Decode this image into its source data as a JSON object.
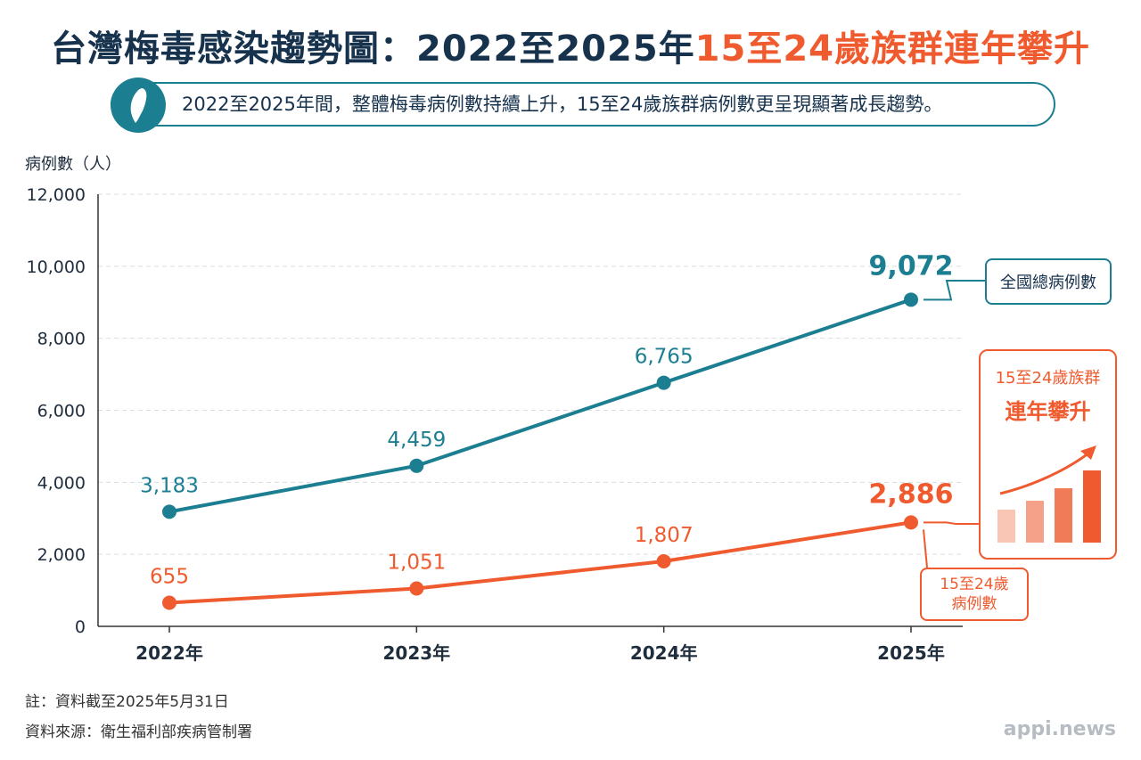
{
  "header": {
    "title_main": "台灣梅毒感染趨勢圖：2022至2025年",
    "title_accent": "15至24歲族群連年攀升",
    "subtitle": "2022至2025年間，整體梅毒病例數持續上升，15至24歲族群病例數更呈現顯著成長趨勢。",
    "banner_icon": "taiwan-map-icon"
  },
  "chart_data": {
    "type": "line",
    "ylabel": "病例數（人）",
    "ylim": [
      0,
      12000
    ],
    "yticks": [
      0,
      2000,
      4000,
      6000,
      8000,
      10000,
      12000
    ],
    "ytick_labels": [
      "0",
      "2,000",
      "4,000",
      "6,000",
      "8,000",
      "10,000",
      "12,000"
    ],
    "categories": [
      "2022年",
      "2023年",
      "2024年",
      "2025年"
    ],
    "grid": true,
    "series": [
      {
        "name": "全國總病例數",
        "values": [
          3183,
          4459,
          6765,
          9072
        ],
        "labels": [
          "3,183",
          "4,459",
          "6,765",
          "9,072"
        ],
        "color": "#1b7e91"
      },
      {
        "name": "15至24歲病例數",
        "name_lines": [
          "15至24歲",
          "病例數"
        ],
        "values": [
          655,
          1051,
          1807,
          2886
        ],
        "labels": [
          "655",
          "1,051",
          "1,807",
          "2,886"
        ],
        "color": "#ef5a2e"
      }
    ],
    "callout": {
      "line1": "15至24歲族群",
      "line2": "連年攀升",
      "icon": "rising-bar-chart-icon"
    }
  },
  "footer": {
    "note": "註：資料截至2025年5月31日",
    "source": "資料來源：衛生福利部疾病管制署",
    "brand": "appi.news"
  }
}
